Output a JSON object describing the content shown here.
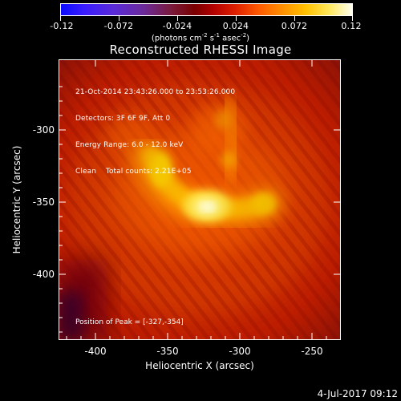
{
  "colorbar": {
    "ticks": [
      "-0.12",
      "-0.072",
      "-0.024",
      "0.024",
      "0.072",
      "0.12"
    ],
    "units_main": "(photons cm",
    "units_sup1": "-2",
    "units_mid1": " s",
    "units_sup2": "-1",
    "units_mid2": " asec",
    "units_sup3": "-2",
    "units_end": ")"
  },
  "title": "Reconstructed RHESSI Image",
  "info": {
    "time_range": "21-Oct-2014 23:43:26.000 to 23:53:26.000",
    "detectors": "Detectors: 3F 6F 9F, Att 0",
    "energy": "Energy Range: 6.0 - 12.0 keV",
    "method": "Clean    Total counts: 2.21E+05"
  },
  "peak": "Position of Peak = [-327,-354]",
  "x_axis": {
    "title": "Heliocentric X (arcsec)",
    "ticks": [
      "-400",
      "-350",
      "-300",
      "-250"
    ]
  },
  "y_axis": {
    "title": "Heliocentric Y (arcsec)",
    "ticks": [
      "-300",
      "-350",
      "-400"
    ]
  },
  "footer_date": "4-Jul-2017 09:12"
}
